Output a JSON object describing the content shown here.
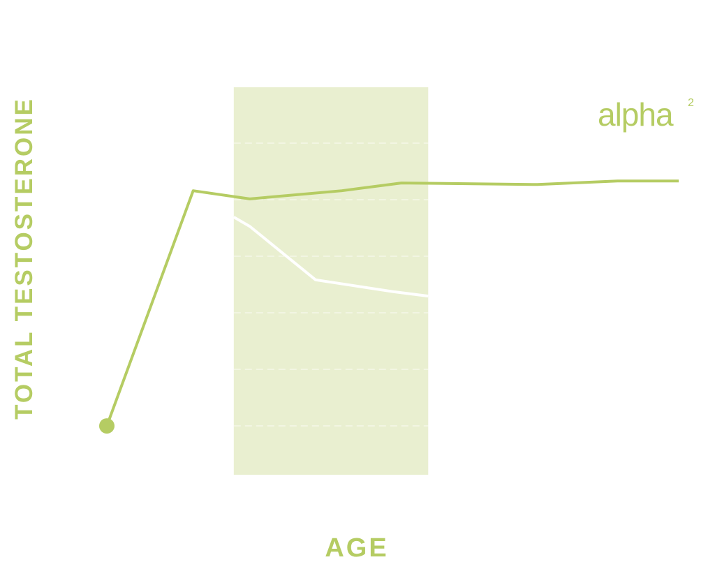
{
  "chart_data": {
    "type": "line",
    "xlabel": "AGE",
    "ylabel": "TOTAL TESTOSTERONE",
    "logo": {
      "text": "alpha",
      "sup": "2"
    },
    "xlim": [
      0,
      100
    ],
    "ylim": [
      0,
      100
    ],
    "band": {
      "color": "#e9efd0",
      "x": [
        22.2,
        56.2
      ]
    },
    "series": [
      {
        "color": "#b5cc63",
        "x": [
          0,
          15.1,
          25,
          41.1,
          51.5,
          75.3,
          89.3,
          100
        ],
        "values": [
          12.6,
          73.3,
          71.2,
          73.3,
          75.3,
          74.9,
          75.8,
          75.8
        ]
      },
      {
        "color": "#ffffff",
        "x": [
          22.2,
          25,
          36.5,
          50.3,
          56.2
        ],
        "values": [
          66.5,
          64.1,
          50.3,
          47.2,
          46.1
        ]
      }
    ]
  }
}
